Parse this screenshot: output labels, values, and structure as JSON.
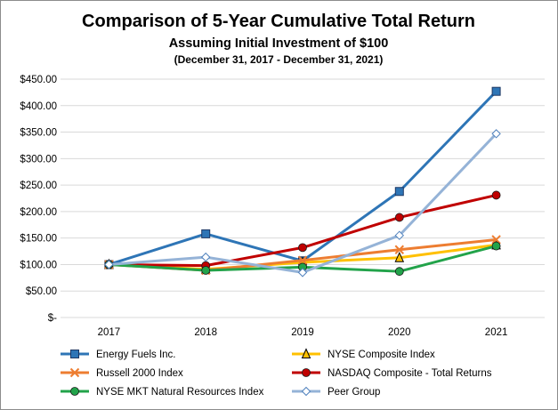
{
  "chart_data": {
    "type": "line",
    "title": "Comparison of 5-Year Cumulative Total Return",
    "subtitle": "Assuming Initial Investment of $100",
    "subtitle2": "(December 31, 2017 - December 31, 2021)",
    "categories": [
      "2017",
      "2018",
      "2019",
      "2020",
      "2021"
    ],
    "y_ticks": [
      "$-",
      "$50.00",
      "$100.00",
      "$150.00",
      "$200.00",
      "$250.00",
      "$300.00",
      "$350.00",
      "$400.00",
      "$450.00"
    ],
    "ylim": [
      0,
      450
    ],
    "grid": true,
    "legend_position": "bottom",
    "series": [
      {
        "name": "Energy Fuels Inc.",
        "color": "#2e75b6",
        "marker": "square",
        "values": [
          100,
          158,
          107,
          238,
          427
        ]
      },
      {
        "name": "NYSE Composite Index",
        "color": "#ffc000",
        "marker": "triangle",
        "values": [
          100,
          91,
          104,
          113,
          137
        ]
      },
      {
        "name": "Russell 2000 Index",
        "color": "#ed7d31",
        "marker": "x",
        "values": [
          100,
          89,
          108,
          128,
          147
        ]
      },
      {
        "name": "NASDAQ Composite - Total Returns",
        "color": "#c00000",
        "marker": "circle",
        "values": [
          100,
          98,
          132,
          189,
          231
        ]
      },
      {
        "name": "NYSE MKT Natural Resources Index",
        "color": "#22a34a",
        "marker": "circle",
        "values": [
          100,
          89,
          95,
          87,
          135
        ]
      },
      {
        "name": "Peer Group",
        "color": "#95b3d7",
        "marker": "diamond",
        "values": [
          100,
          114,
          85,
          155,
          347
        ]
      }
    ]
  }
}
